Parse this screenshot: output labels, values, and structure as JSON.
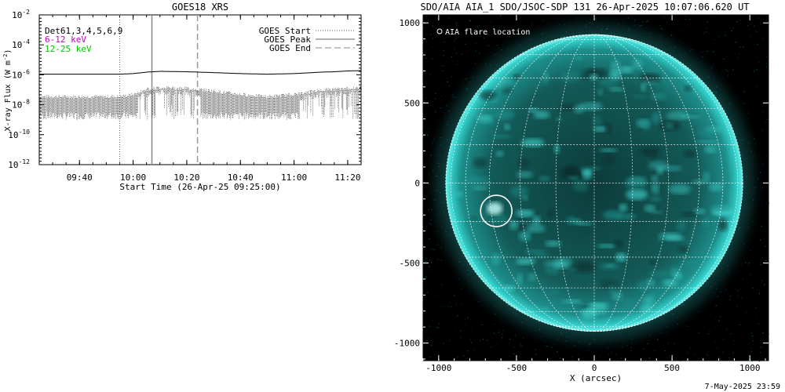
{
  "footer_timestamp": "7-May-2025 23:59",
  "chart_data": [
    {
      "type": "line",
      "title": "GOES18 XRS",
      "xlabel": "Start Time (26-Apr-25 09:25:00)",
      "ylabel": "X-ray Flux (W m^-2)",
      "ylabel_main": "X-ray Flux (W m",
      "ylabel_sup": "-2",
      "ylabel_end": ")",
      "y_scale": "log",
      "ylim": [
        1e-12,
        0.01
      ],
      "xlim": [
        "09:25",
        "11:25"
      ],
      "xticks": [
        "09:40",
        "10:00",
        "10:20",
        "10:40",
        "11:00",
        "11:20"
      ],
      "yticks": [
        {
          "base": "10",
          "exp": "-12",
          "value": 1e-12
        },
        {
          "base": "10",
          "exp": "-10",
          "value": 1e-10
        },
        {
          "base": "10",
          "exp": "-8",
          "value": 1e-08
        },
        {
          "base": "10",
          "exp": "-6",
          "value": 1e-06
        },
        {
          "base": "10",
          "exp": "-4",
          "value": 0.0001
        },
        {
          "base": "10",
          "exp": "-2",
          "value": 0.01
        }
      ],
      "info_label": "Det61,3,4,5,6,9",
      "channel_labels": [
        {
          "text": "6-12 keV",
          "color": "#c800c8"
        },
        {
          "text": "12-25 keV",
          "color": "#00c800"
        }
      ],
      "legend_position": "top-right",
      "legend": [
        {
          "label": "GOES Start",
          "style": "dotted"
        },
        {
          "label": "GOES Peak",
          "style": "solid"
        },
        {
          "label": "GOES End",
          "style": "dashed"
        }
      ],
      "markers": {
        "start": "09:55",
        "peak": "10:07",
        "end": "10:24"
      },
      "series": [
        {
          "channel": "long",
          "x": [
            "09:25",
            "09:35",
            "09:45",
            "09:55",
            "10:00",
            "10:05",
            "10:10",
            "10:20",
            "10:30",
            "10:40",
            "10:50",
            "11:00",
            "11:10",
            "11:15",
            "11:20",
            "11:25"
          ],
          "values": [
            1.1e-06,
            1.1e-06,
            1.1e-06,
            1.1e-06,
            1.2e-06,
            1.5e-06,
            1.7e-06,
            1.6e-06,
            1.4e-06,
            1.2e-06,
            1.1e-06,
            1.2e-06,
            1.5e-06,
            1.6e-06,
            1.8e-06,
            1.9e-06
          ]
        },
        {
          "channel": "short",
          "x": [
            "09:25",
            "09:35",
            "09:45",
            "09:55",
            "10:00",
            "10:05",
            "10:10",
            "10:20",
            "10:30",
            "10:40",
            "10:50",
            "11:00",
            "11:10",
            "11:15",
            "11:20",
            "11:25"
          ],
          "values": [
            2.5e-08,
            2.5e-08,
            2.5e-08,
            2.5e-08,
            3.5e-08,
            8e-08,
            1e-07,
            9e-08,
            6e-08,
            3.5e-08,
            2.5e-08,
            3.5e-08,
            7e-08,
            8e-08,
            9e-08,
            9.5e-08
          ],
          "noise_floor": 1e-09
        }
      ]
    },
    {
      "type": "scatter",
      "title": "SDO/AIA AIA_1 SDO/JSOC-SDP 131 26-Apr-2025 10:07:06.620 UT",
      "xlabel": "X (arcsec)",
      "ylabel": "",
      "xlim": [
        -1100,
        1120
      ],
      "ylim": [
        -1110,
        1050
      ],
      "xticks": [
        -1000,
        -500,
        0,
        500,
        1000
      ],
      "yticks": [
        -1000,
        -500,
        0,
        500,
        1000
      ],
      "legend": [
        {
          "label": "AIA flare location",
          "symbol": "circle"
        }
      ],
      "solar_radius_arcsec": 955,
      "flare_location": {
        "x": -640,
        "y": -160
      },
      "colors": {
        "disk": "#1fb3b0",
        "background": "#000000",
        "grid": "#ffffff"
      }
    }
  ]
}
